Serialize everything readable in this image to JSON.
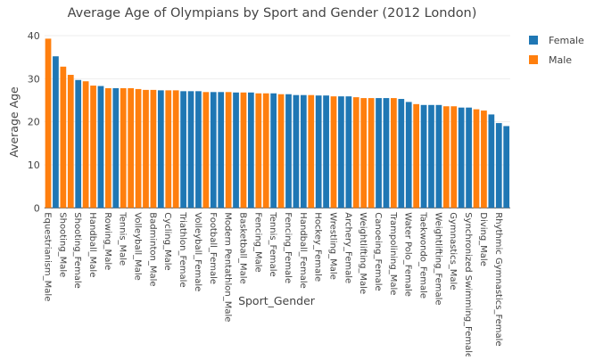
{
  "chart_data": {
    "type": "bar",
    "title": "Average Age of Olympians by Sport and Gender (2012 London)",
    "xlabel": "Sport_Gender",
    "ylabel": "Average Age",
    "ylim": [
      0,
      40
    ],
    "yticks": [
      0,
      10,
      20,
      30,
      40
    ],
    "grid": true,
    "legend_placement": "top-right",
    "colors": {
      "Female": "#1f77b4",
      "Male": "#ff7f0e"
    },
    "legend": [
      "Female",
      "Male"
    ],
    "categories": [
      "Equestrianism_Male",
      "",
      "Shooting_Male",
      "",
      "Shooting_Female",
      "",
      "Handball_Male",
      "",
      "Rowing_Male",
      "",
      "Tennis_Male",
      "",
      "Volleyball_Male",
      "",
      "Badminton_Male",
      "",
      "Cycling_Male",
      "",
      "Triathlon_Female",
      "",
      "Volleyball_Female",
      "",
      "Football_Female",
      "",
      "Modern Pentathlon_Male",
      "",
      "Basketball_Male",
      "",
      "Fencing_Male",
      "",
      "Tennis_Female",
      "",
      "Fencing_Female",
      "",
      "Handball_Female",
      "",
      "Hockey_Female",
      "",
      "Wrestling_Male",
      "",
      "Archery_Female",
      "",
      "Weightlifting_Male",
      "",
      "Canoeing_Female",
      "",
      "Trampolining_Male",
      "",
      "Water Polo_Female",
      "",
      "Taekwondo_Female",
      "",
      "Weightlifting_Female",
      "",
      "Gymnastics_Male",
      "",
      "Synchronized Swimming_Female",
      "",
      "Diving_Male",
      "",
      "Rhythmic Gymnastics_Female",
      ""
    ],
    "gender": [
      "Male",
      "Female",
      "Male",
      "Male",
      "Female",
      "Male",
      "Male",
      "Female",
      "Male",
      "Female",
      "Male",
      "Male",
      "Male",
      "Male",
      "Male",
      "Female",
      "Male",
      "Male",
      "Female",
      "Female",
      "Female",
      "Male",
      "Female",
      "Female",
      "Male",
      "Female",
      "Male",
      "Female",
      "Male",
      "Male",
      "Female",
      "Male",
      "Female",
      "Female",
      "Female",
      "Male",
      "Female",
      "Female",
      "Male",
      "Female",
      "Female",
      "Male",
      "Male",
      "Male",
      "Female",
      "Female",
      "Male",
      "Female",
      "Female",
      "Male",
      "Female",
      "Female",
      "Female",
      "Male",
      "Male",
      "Female",
      "Female",
      "Male",
      "Male",
      "Female",
      "Female",
      "Female"
    ],
    "values": [
      39.3,
      35.2,
      32.8,
      30.9,
      29.7,
      29.4,
      28.4,
      28.3,
      27.8,
      27.8,
      27.8,
      27.8,
      27.6,
      27.4,
      27.4,
      27.3,
      27.3,
      27.3,
      27.1,
      27.1,
      27.1,
      26.9,
      26.9,
      26.9,
      26.9,
      26.8,
      26.8,
      26.8,
      26.6,
      26.6,
      26.6,
      26.4,
      26.4,
      26.2,
      26.2,
      26.2,
      26.1,
      26.1,
      25.9,
      25.9,
      25.9,
      25.7,
      25.5,
      25.5,
      25.5,
      25.5,
      25.5,
      25.3,
      24.6,
      24.1,
      23.9,
      23.9,
      23.9,
      23.6,
      23.6,
      23.3,
      23.3,
      22.9,
      22.6,
      21.7,
      19.7,
      19.0
    ]
  }
}
